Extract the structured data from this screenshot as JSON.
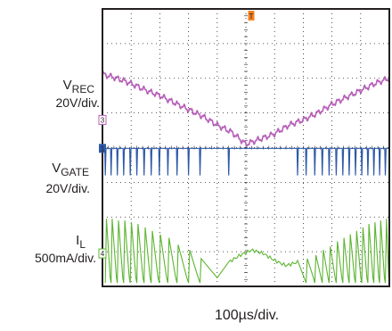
{
  "chart_data": {
    "type": "line",
    "time_base": "100µs/div.",
    "grid": true,
    "divisions": {
      "horizontal": 10,
      "vertical": 8
    },
    "trigger_marker": "T",
    "channels": [
      {
        "id": "ch3",
        "marker": "3",
        "name": "V",
        "subscript": "REC",
        "scale": "20V/div.",
        "color": "#b65fb8",
        "x_div": [
          0,
          0.5,
          1,
          1.5,
          2,
          2.5,
          3,
          3.5,
          4,
          4.5,
          5,
          5.5,
          6,
          6.5,
          7,
          7.5,
          8,
          8.5,
          9,
          9.5,
          10
        ],
        "y_div": [
          6.12,
          6.0,
          5.85,
          5.66,
          5.5,
          5.3,
          5.1,
          4.9,
          4.65,
          4.45,
          4.1,
          4.25,
          4.4,
          4.65,
          4.8,
          5.0,
          5.25,
          5.45,
          5.65,
          5.85,
          6.0
        ]
      },
      {
        "id": "ch1",
        "marker": "1",
        "name": "V",
        "subscript": "GATE",
        "scale": "20V/div.",
        "color": "#2e5aa8",
        "level_div": 3.98,
        "low_div": 3.2,
        "pulse_x_div": [
          0.1,
          0.3,
          0.52,
          0.74,
          0.97,
          1.2,
          1.45,
          1.7,
          1.98,
          2.28,
          2.6,
          3.0,
          3.4,
          4.4,
          6.8,
          7.1,
          7.4,
          7.66,
          7.9,
          8.15,
          8.38,
          8.6,
          8.82,
          9.04,
          9.25,
          9.46,
          9.66,
          9.86
        ]
      },
      {
        "id": "ch4",
        "marker": "4",
        "name": "I",
        "subscript": "L",
        "scale": "500mA/div.",
        "color": "#5cb531",
        "baseline_div": 0.1,
        "ramp_x_div": [
          0.1,
          0.3,
          0.52,
          0.74,
          0.97,
          1.2,
          1.45,
          1.7,
          1.98,
          2.28,
          2.6,
          3.0,
          3.4,
          6.8,
          7.1,
          7.4,
          7.66,
          7.9,
          8.15,
          8.38,
          8.6,
          8.82,
          9.04,
          9.25,
          9.46,
          9.66,
          9.86
        ],
        "ramp_peak_div": [
          1.95,
          1.95,
          1.9,
          1.9,
          1.85,
          1.8,
          1.7,
          1.6,
          1.5,
          1.4,
          1.2,
          1.05,
          0.8,
          0.65,
          0.8,
          0.9,
          1.05,
          1.15,
          1.3,
          1.4,
          1.5,
          1.6,
          1.7,
          1.8,
          1.85,
          1.9,
          1.95
        ],
        "hump": {
          "x_div": [
            4.4,
            4.8,
            5.2,
            5.6,
            6.0,
            6.4,
            6.8
          ],
          "y_div": [
            0.7,
            0.9,
            1.05,
            0.95,
            0.75,
            0.6,
            0.7
          ]
        }
      }
    ]
  }
}
